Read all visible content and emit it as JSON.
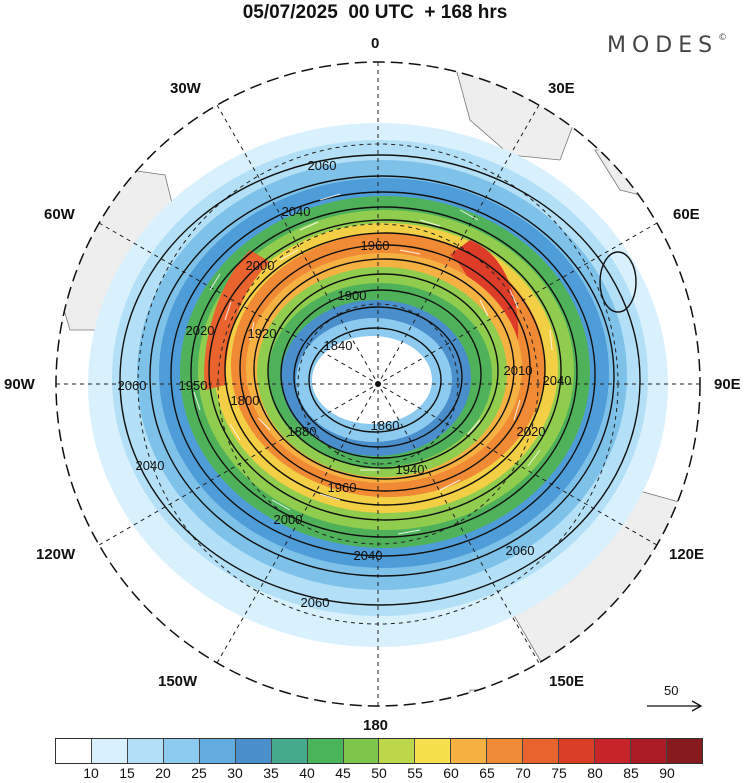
{
  "header": {
    "title": "05/07/2025  00 UTC  + 168 hrs",
    "brand": "MODES",
    "brand_mark": "©"
  },
  "map": {
    "projection": "polar stereographic (Southern Hemisphere)",
    "pole_symbol": "dot",
    "longitude_labels": [
      "0",
      "30E",
      "60E",
      "90E",
      "120E",
      "150E",
      "180",
      "150W",
      "120W",
      "90W",
      "60W",
      "30W"
    ],
    "contour_labels": [
      "2060",
      "2040",
      "2000",
      "1960",
      "1900",
      "1840",
      "2020",
      "1920",
      "1880",
      "1860",
      "1940",
      "1800",
      "1950",
      "2060",
      "2060",
      "2040",
      "2040",
      "2020",
      "2000",
      "1960",
      "2010",
      "2040",
      "2060"
    ],
    "field": "wind speed (shaded) and geopotential height (contours)",
    "ring_colors": [
      "#b3e0f6",
      "#7ec2ea",
      "#4f9dd8",
      "#4fb25a",
      "#90cd4e",
      "#f2cf45",
      "#f08a35",
      "#dd3c29"
    ]
  },
  "vector_reference": {
    "value": "50"
  },
  "colorbar": {
    "ticks": [
      "10",
      "15",
      "20",
      "25",
      "30",
      "35",
      "40",
      "45",
      "50",
      "55",
      "60",
      "65",
      "70",
      "75",
      "80",
      "85",
      "90"
    ],
    "colors": [
      "#ffffff",
      "#d9f1fc",
      "#b3e0f6",
      "#8ccbef",
      "#63acdf",
      "#4a8fcb",
      "#45a98c",
      "#4ab45a",
      "#7dc54b",
      "#bcd84a",
      "#f6e04c",
      "#f6b143",
      "#ef8b36",
      "#e8632e",
      "#db3e27",
      "#c8252a",
      "#ab1b25",
      "#861a1c"
    ]
  }
}
